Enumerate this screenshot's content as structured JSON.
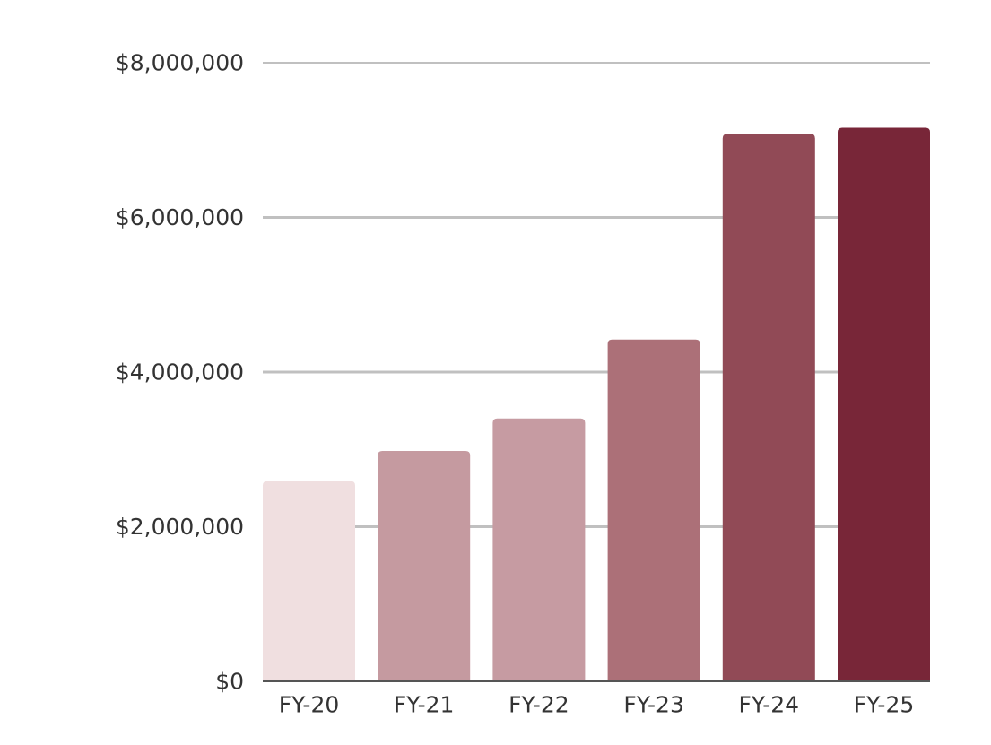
{
  "chart_data": {
    "type": "bar",
    "categories": [
      "FY-20",
      "FY-21",
      "FY-22",
      "FY-23",
      "FY-24",
      "FY-25"
    ],
    "values": [
      2590000,
      2980000,
      3400000,
      4420000,
      7080000,
      7160000
    ],
    "colors": [
      "#f0dfe0",
      "#c59aa0",
      "#c69ba2",
      "#ac7078",
      "#914a56",
      "#782638"
    ],
    "title": "",
    "xlabel": "",
    "ylabel": "",
    "ylim": [
      0,
      8000000
    ],
    "yticks": [
      0,
      2000000,
      4000000,
      6000000,
      8000000
    ],
    "ytick_labels": [
      "$0",
      "$2,000,000",
      "$4,000,000",
      "$6,000,000",
      "$8,000,000"
    ],
    "grid": true,
    "legend": "none",
    "gridline_color": "#c0c0c0",
    "axis_color": "#555555"
  }
}
